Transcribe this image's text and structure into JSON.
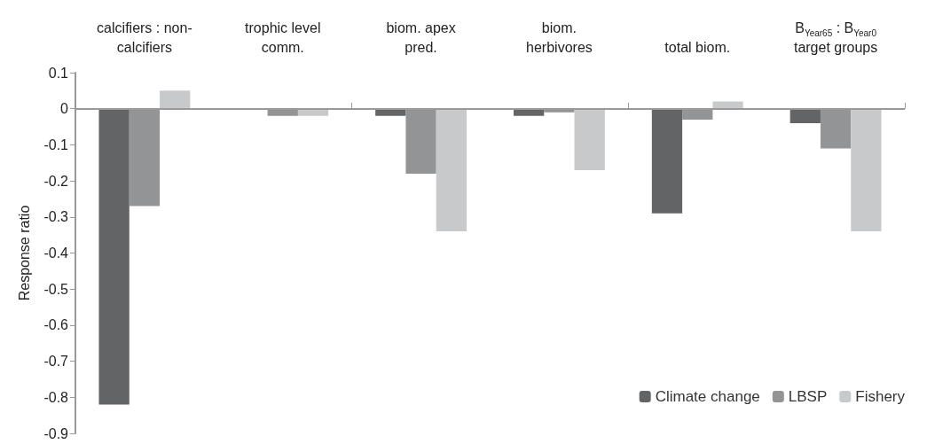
{
  "chart_data": {
    "type": "bar",
    "ylabel": "Response ratio",
    "categories": [
      "calcifiers : non-\ncalcifiers",
      "trophic level\ncomm.",
      "biom. apex\npred.",
      "biom.\nherbivores",
      "total biom.",
      "B$_{Year65}$ : B$_{Year0}$\ntarget groups"
    ],
    "series": [
      {
        "name": "Climate change",
        "color": "#636466",
        "values": [
          -0.82,
          0,
          -0.02,
          -0.02,
          -0.29,
          -0.04
        ]
      },
      {
        "name": "LBSP",
        "color": "#939496",
        "values": [
          -0.27,
          -0.02,
          -0.18,
          -0.01,
          -0.03,
          -0.11
        ]
      },
      {
        "name": "Fishery",
        "color": "#c8c9cb",
        "values": [
          0.05,
          -0.02,
          -0.34,
          -0.17,
          0.02,
          -0.34
        ]
      }
    ],
    "ylim": [
      -0.9,
      0.1
    ],
    "yticks": [
      0.1,
      0,
      -0.1,
      -0.2,
      -0.3,
      -0.4,
      -0.5,
      -0.6,
      -0.7,
      -0.8,
      -0.9
    ],
    "ref_lines": [
      {
        "axis": "y",
        "value": 0,
        "color": "#999999"
      }
    ],
    "grid": false,
    "legend": "bottom right"
  }
}
